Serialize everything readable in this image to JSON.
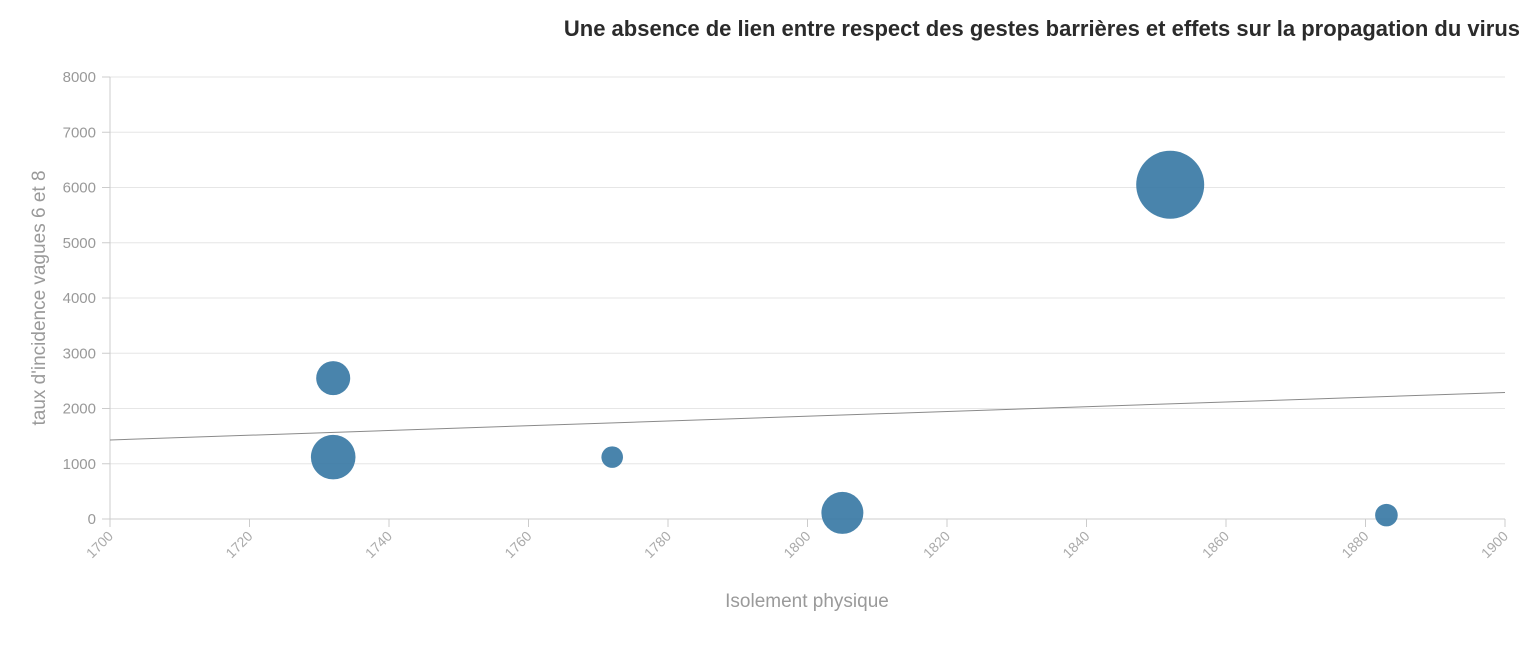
{
  "chart_data": {
    "type": "scatter",
    "title": "Une absence de lien entre respect des gestes barrières et effets sur la propagation du virus",
    "xlabel": "Isolement physique",
    "ylabel": "taux d'incidence vagues 6 et 8",
    "xlim": [
      1700,
      1900
    ],
    "ylim": [
      0,
      8000
    ],
    "x_ticks": [
      "1700",
      "1720",
      "1740",
      "1760",
      "1780",
      "1800",
      "1820",
      "1840",
      "1860",
      "1880",
      "1900"
    ],
    "y_ticks": [
      "0",
      "1000",
      "2000",
      "3000",
      "4000",
      "5000",
      "6000",
      "7000",
      "8000"
    ],
    "grid": true,
    "legend": "none",
    "bubble_color": "#3a7aa5",
    "trendline_color": "#8a8a8a",
    "points": [
      {
        "x": 1732,
        "y": 2550,
        "size": 2.5
      },
      {
        "x": 1732,
        "y": 1120,
        "size": 4.3
      },
      {
        "x": 1772,
        "y": 1120,
        "size": 1
      },
      {
        "x": 1805,
        "y": 110,
        "size": 3.8
      },
      {
        "x": 1852,
        "y": 6050,
        "size": 10
      },
      {
        "x": 1883,
        "y": 70,
        "size": 1.1
      }
    ],
    "trendline": {
      "x": [
        1700,
        1900
      ],
      "y": [
        1430,
        2290
      ]
    }
  }
}
